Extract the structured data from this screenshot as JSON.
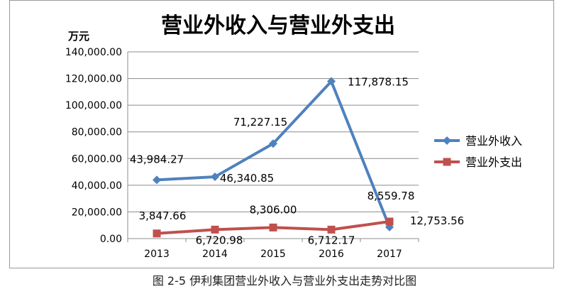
{
  "chart_data": {
    "type": "line",
    "title": "营业外收入与营业外支出",
    "unit_label": "万元",
    "categories": [
      "2013",
      "2014",
      "2015",
      "2016",
      "2017"
    ],
    "ylim": [
      0,
      140000
    ],
    "y_ticks": [
      "0.00",
      "20,000.00",
      "40,000.00",
      "60,000.00",
      "80,000.00",
      "100,000.00",
      "120,000.00",
      "140,000.00"
    ],
    "grid": true,
    "legend_position": "right",
    "series": [
      {
        "name": "营业外收入",
        "color": "#4F81BD",
        "marker": "diamond",
        "values": [
          43984.27,
          46340.85,
          71227.15,
          117878.15,
          8559.78
        ],
        "labels": [
          "43,984.27",
          "46,340.85",
          "71,227.15",
          "117,878.15",
          "8,559.78"
        ]
      },
      {
        "name": "营业外支出",
        "color": "#C0504D",
        "marker": "square",
        "values": [
          3847.66,
          6720.98,
          8306.0,
          6712.17,
          12753.56
        ],
        "labels": [
          "3,847.66",
          "6,720.98",
          "8,306.00",
          "6,712.17",
          "12,753.56"
        ]
      }
    ]
  },
  "caption": "图 2-5 伊利集团营业外收入与营业外支出走势对比图"
}
